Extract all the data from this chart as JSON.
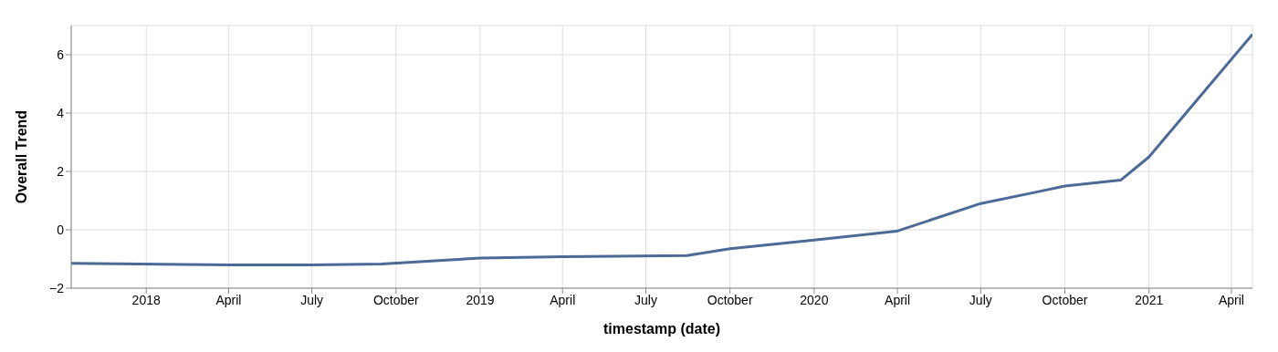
{
  "chart_data": {
    "type": "line",
    "xlabel": "timestamp (date)",
    "ylabel": "Overall Trend",
    "x": [
      "2017-10-11",
      "2018-04-01",
      "2018-07-01",
      "2018-09-15",
      "2019-01-01",
      "2019-04-01",
      "2019-08-15",
      "2019-10-01",
      "2020-01-01",
      "2020-03-31",
      "2020-07-01",
      "2020-09-01",
      "2020-10-01",
      "2020-12-01",
      "2021-01-01",
      "2021-04-24"
    ],
    "series": [
      {
        "color": "#4c6a96",
        "values": [
          -1.15,
          -1.2,
          -1.2,
          -1.17,
          -0.97,
          -0.92,
          -0.88,
          -0.65,
          -0.35,
          -0.05,
          0.9,
          1.3,
          1.5,
          1.7,
          2.5,
          6.7
        ]
      }
    ],
    "xlim": [
      "2017-10-11",
      "2021-04-24"
    ],
    "xticks": [
      {
        "value": "2018-01-01",
        "label": "2018"
      },
      {
        "value": "2018-04-01",
        "label": "April"
      },
      {
        "value": "2018-07-01",
        "label": "July"
      },
      {
        "value": "2018-10-01",
        "label": "October"
      },
      {
        "value": "2019-01-01",
        "label": "2019"
      },
      {
        "value": "2019-04-01",
        "label": "April"
      },
      {
        "value": "2019-07-01",
        "label": "July"
      },
      {
        "value": "2019-10-01",
        "label": "October"
      },
      {
        "value": "2020-01-01",
        "label": "2020"
      },
      {
        "value": "2020-04-01",
        "label": "April"
      },
      {
        "value": "2020-07-01",
        "label": "July"
      },
      {
        "value": "2020-10-01",
        "label": "October"
      },
      {
        "value": "2021-01-01",
        "label": "2021"
      },
      {
        "value": "2021-04-01",
        "label": "April"
      }
    ],
    "ylim": [
      -2,
      7
    ],
    "yticks": [
      -2,
      0,
      2,
      4,
      6
    ],
    "grid": true,
    "line_style": "solid"
  }
}
